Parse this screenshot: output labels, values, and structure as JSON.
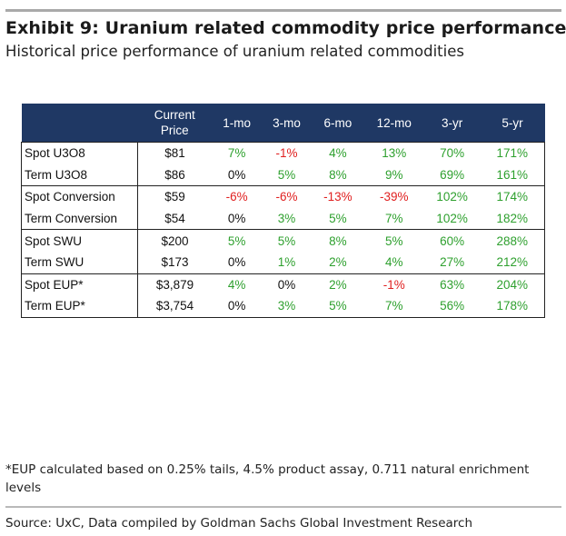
{
  "title": "Exhibit 9: Uranium related commodity price performance",
  "subtitle": "Historical price performance of uranium related commodities",
  "table": {
    "headers": [
      "",
      "Current\nPrice",
      "1-mo",
      "3-mo",
      "6-mo",
      "12-mo",
      "3-yr",
      "5-yr"
    ],
    "rows": [
      {
        "name": "Spot U3O8",
        "price": "$81",
        "values": [
          "7%",
          "-1%",
          "4%",
          "13%",
          "70%",
          "171%"
        ]
      },
      {
        "name": "Term U3O8",
        "price": "$86",
        "values": [
          "0%",
          "5%",
          "8%",
          "9%",
          "69%",
          "161%"
        ]
      },
      {
        "name": "Spot Conversion",
        "price": "$59",
        "values": [
          "-6%",
          "-6%",
          "-13%",
          "-39%",
          "102%",
          "174%"
        ]
      },
      {
        "name": "Term Conversion",
        "price": "$54",
        "values": [
          "0%",
          "3%",
          "5%",
          "7%",
          "102%",
          "182%"
        ]
      },
      {
        "name": "Spot SWU",
        "price": "$200",
        "values": [
          "5%",
          "5%",
          "8%",
          "5%",
          "60%",
          "288%"
        ]
      },
      {
        "name": "Term SWU",
        "price": "$173",
        "values": [
          "0%",
          "1%",
          "2%",
          "4%",
          "27%",
          "212%"
        ]
      },
      {
        "name": "Spot EUP*",
        "price": "$3,879",
        "values": [
          "4%",
          "0%",
          "2%",
          "-1%",
          "63%",
          "204%"
        ]
      },
      {
        "name": "Term EUP*",
        "price": "$3,754",
        "values": [
          "0%",
          "3%",
          "5%",
          "7%",
          "56%",
          "178%"
        ]
      }
    ],
    "colors": {
      "positive": "#2ea02e",
      "negative": "#e02020",
      "neutral": "#111111",
      "header_bg": "#1f3864"
    }
  },
  "footnote": "*EUP calculated based on 0.25% tails, 4.5% product assay, 0.711 natural enrichment levels",
  "source": "Source: UxC, Data compiled by Goldman Sachs Global Investment Research"
}
